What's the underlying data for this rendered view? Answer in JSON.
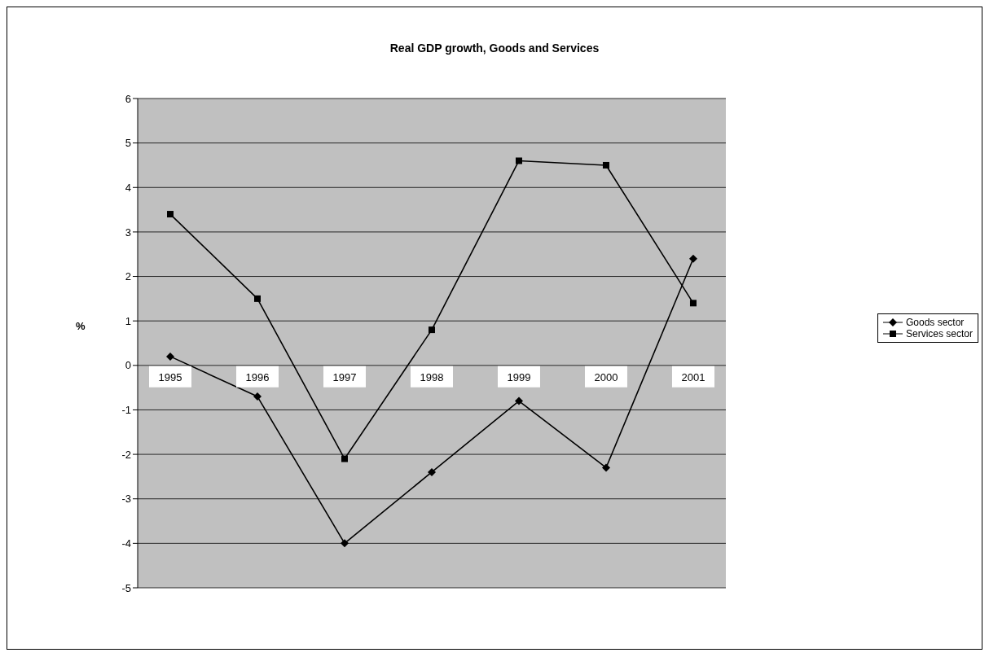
{
  "chart_data": {
    "type": "line",
    "title": "Real GDP growth, Goods and Services",
    "ylabel": "%",
    "categories": [
      "1995",
      "1996",
      "1997",
      "1998",
      "1999",
      "2000",
      "2001"
    ],
    "series": [
      {
        "name": "Goods sector",
        "color": "#000000",
        "marker": "diamond",
        "values": [
          0.2,
          -0.7,
          -4.0,
          -2.4,
          -0.8,
          -2.3,
          2.4
        ]
      },
      {
        "name": "Services sector",
        "color": "#000000",
        "marker": "square",
        "values": [
          3.4,
          1.5,
          -2.1,
          0.8,
          4.6,
          4.5,
          1.4
        ]
      }
    ],
    "ylim": [
      -5,
      6
    ],
    "yticks": [
      -5,
      -4,
      -3,
      -2,
      -1,
      0,
      1,
      2,
      3,
      4,
      5,
      6
    ],
    "grid": "y",
    "legend": "right",
    "line_style": "solid"
  }
}
